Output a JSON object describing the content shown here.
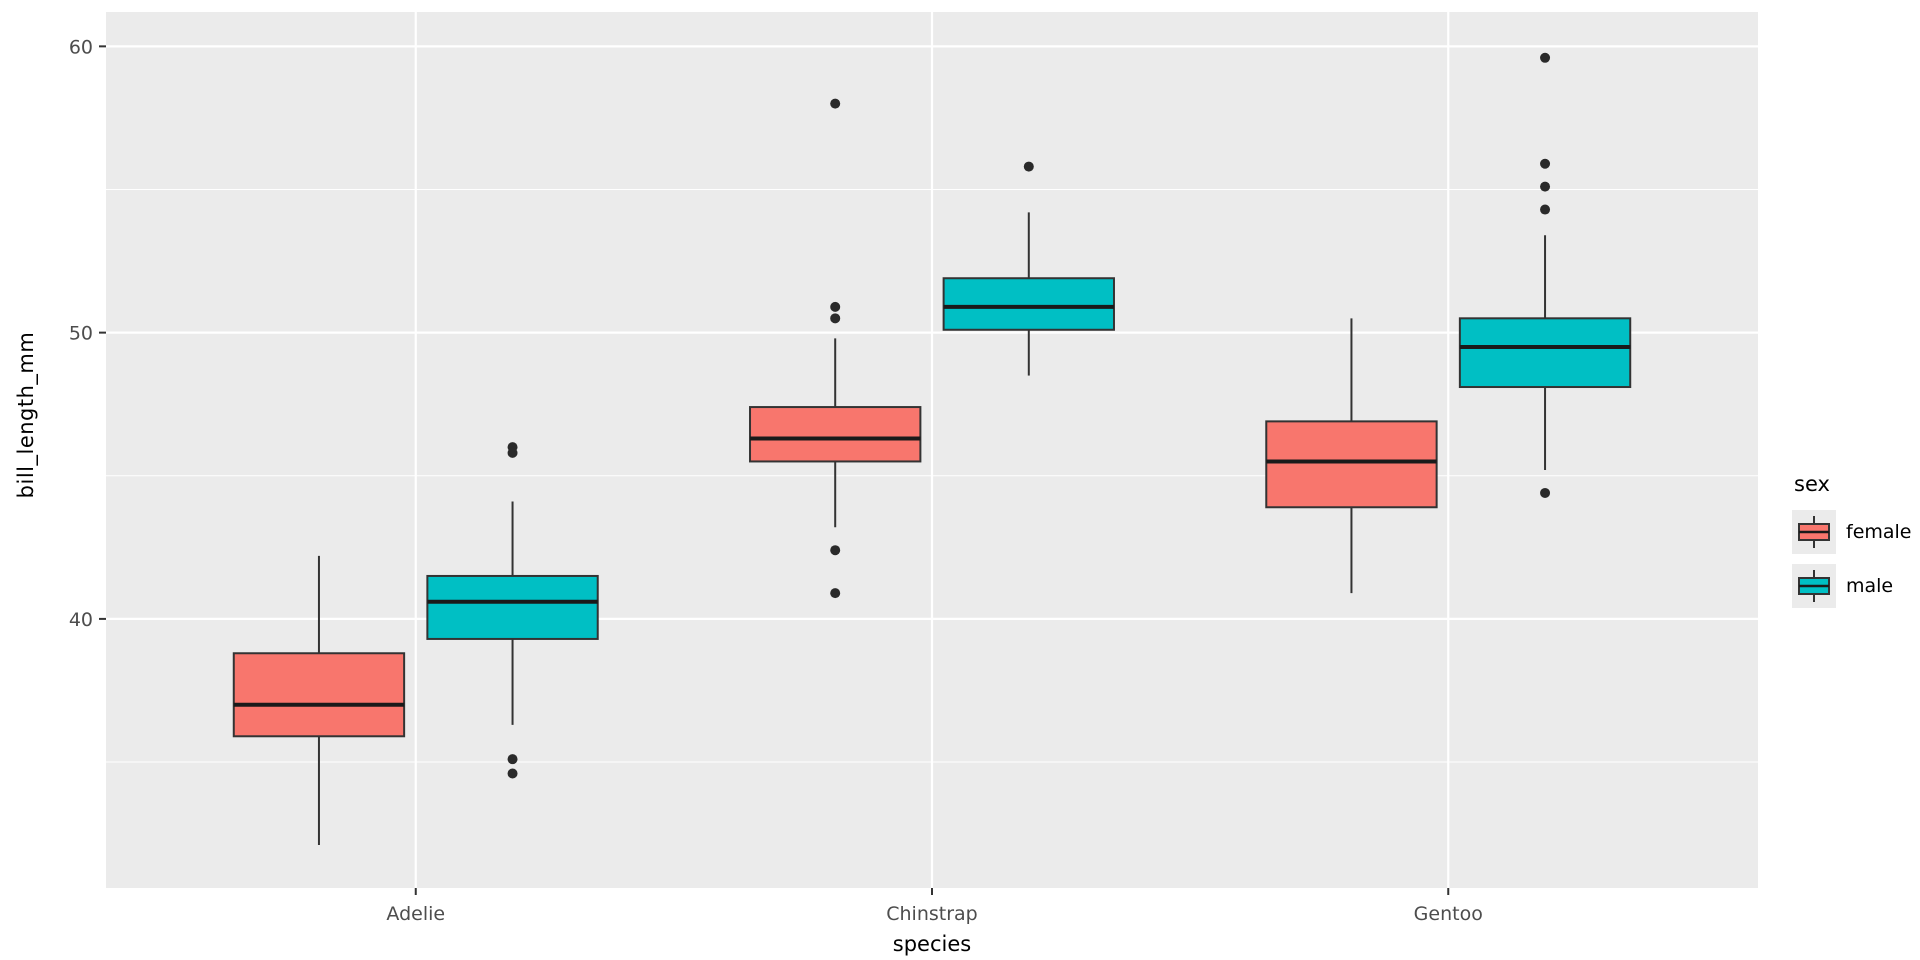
{
  "figure": {
    "background": "#FFFFFF",
    "panel_background": "#EBEBEB",
    "grid_color": "#FFFFFF",
    "axis_text_color": "#4D4D4D",
    "axis_title_color": "#000000",
    "box_outline_color": "#333333",
    "median_color": "#1A1A1A",
    "outlier_color": "#2A2A2A"
  },
  "chart_data": {
    "type": "boxplot",
    "title": "",
    "xlabel": "species",
    "ylabel": "bill_length_mm",
    "categories": [
      "Adelie",
      "Chinstrap",
      "Gentoo"
    ],
    "ylim": [
      30.6,
      61.2
    ],
    "yticks": [
      40,
      50,
      60
    ],
    "yminor": [
      35,
      45,
      55
    ],
    "grid": true,
    "legend": {
      "title": "sex",
      "position": "right",
      "entries": [
        {
          "label": "female",
          "color": "#F8766D"
        },
        {
          "label": "male",
          "color": "#00BFC4"
        }
      ]
    },
    "series": [
      {
        "name": "female",
        "color": "#F8766D",
        "boxes": [
          {
            "category": "Adelie",
            "whislo": 32.1,
            "q1": 35.9,
            "med": 37.0,
            "q3": 38.8,
            "whishi": 42.2,
            "outliers": []
          },
          {
            "category": "Chinstrap",
            "whislo": 43.2,
            "q1": 45.5,
            "med": 46.3,
            "q3": 47.4,
            "whishi": 49.8,
            "outliers": [
              40.9,
              42.4,
              50.5,
              50.9,
              58.0
            ]
          },
          {
            "category": "Gentoo",
            "whislo": 40.9,
            "q1": 43.9,
            "med": 45.5,
            "q3": 46.9,
            "whishi": 50.5,
            "outliers": []
          }
        ]
      },
      {
        "name": "male",
        "color": "#00BFC4",
        "boxes": [
          {
            "category": "Adelie",
            "whislo": 36.3,
            "q1": 39.3,
            "med": 40.6,
            "q3": 41.5,
            "whishi": 44.1,
            "outliers": [
              34.6,
              35.1,
              45.8,
              46.0
            ]
          },
          {
            "category": "Chinstrap",
            "whislo": 48.5,
            "q1": 50.1,
            "med": 50.9,
            "q3": 51.9,
            "whishi": 54.2,
            "outliers": [
              55.8
            ]
          },
          {
            "category": "Gentoo",
            "whislo": 45.2,
            "q1": 48.1,
            "med": 49.5,
            "q3": 50.5,
            "whishi": 53.4,
            "outliers": [
              44.4,
              54.3,
              55.1,
              55.9,
              59.6
            ]
          }
        ]
      }
    ]
  }
}
